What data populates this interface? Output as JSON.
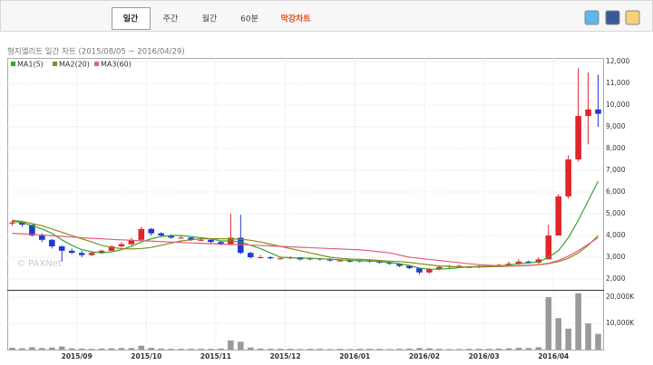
{
  "tabs": [
    "일간",
    "주간",
    "월간",
    "60분",
    "막강차트"
  ],
  "chart_data": [
    {
      "type": "candlestick",
      "title": "형지엘리트 일간 차트 (2015/08/05 ~ 2016/04/29)",
      "categories": [
        null,
        null,
        null,
        null,
        null,
        null,
        null,
        "2015/09",
        null,
        null,
        null,
        null,
        null,
        null,
        "2015/10",
        null,
        null,
        null,
        null,
        null,
        null,
        "2015/11",
        null,
        null,
        null,
        null,
        null,
        null,
        "2015/12",
        null,
        null,
        null,
        null,
        null,
        null,
        "2016/01",
        null,
        null,
        null,
        null,
        null,
        null,
        "2016/02",
        null,
        null,
        null,
        null,
        null,
        "2016/03",
        null,
        null,
        null,
        null,
        null,
        null,
        "2016/04",
        null,
        null,
        null,
        null
      ],
      "open": [
        4550,
        4600,
        4500,
        4000,
        3800,
        3500,
        3300,
        3200,
        3100,
        3200,
        3300,
        3500,
        3600,
        3800,
        4300,
        4100,
        4000,
        3900,
        3900,
        3800,
        3800,
        3700,
        3600,
        3900,
        3200,
        3000,
        3000,
        2950,
        2950,
        3000,
        2900,
        2950,
        2900,
        2850,
        2850,
        2800,
        2850,
        2800,
        2750,
        2700,
        2600,
        2500,
        2300,
        2450,
        2550,
        2600,
        2550,
        2550,
        2600,
        2600,
        2650,
        2700,
        2800,
        2750,
        2900,
        4000,
        5800,
        7500,
        9500,
        9800
      ],
      "high": [
        4700,
        4650,
        4500,
        4100,
        3850,
        3550,
        3400,
        3300,
        3250,
        3350,
        3550,
        3700,
        3900,
        4400,
        4350,
        4150,
        4050,
        4000,
        3950,
        3900,
        3850,
        3750,
        5000,
        4950,
        3250,
        3100,
        3050,
        3000,
        3050,
        3000,
        3000,
        2950,
        2950,
        2900,
        2900,
        2900,
        2850,
        2850,
        2800,
        2700,
        2650,
        2500,
        2500,
        2600,
        2650,
        2650,
        2600,
        2650,
        2650,
        2700,
        2800,
        2900,
        2850,
        3000,
        4500,
        5900,
        7700,
        11700,
        11500,
        11400
      ],
      "low": [
        4450,
        4400,
        3950,
        3700,
        3400,
        2800,
        3150,
        3000,
        3050,
        3150,
        3250,
        3450,
        3550,
        3750,
        4000,
        3950,
        3850,
        3850,
        3750,
        3750,
        3650,
        3550,
        3550,
        3150,
        2950,
        2950,
        2900,
        2900,
        2900,
        2850,
        2850,
        2850,
        2800,
        2800,
        2750,
        2750,
        2750,
        2700,
        2650,
        2550,
        2450,
        2200,
        2250,
        2400,
        2500,
        2500,
        2500,
        2500,
        2550,
        2550,
        2600,
        2650,
        2700,
        2700,
        2900,
        4000,
        5700,
        7400,
        8200,
        9000
      ],
      "close": [
        4600,
        4500,
        4000,
        3800,
        3500,
        3300,
        3200,
        3100,
        3200,
        3300,
        3500,
        3600,
        3800,
        4300,
        4100,
        4000,
        3900,
        3900,
        3800,
        3800,
        3700,
        3600,
        3900,
        3200,
        3000,
        3000,
        2950,
        2950,
        3000,
        2900,
        2950,
        2900,
        2850,
        2850,
        2800,
        2850,
        2800,
        2750,
        2700,
        2600,
        2500,
        2300,
        2450,
        2550,
        2600,
        2550,
        2550,
        2600,
        2600,
        2650,
        2700,
        2800,
        2750,
        2900,
        4000,
        5800,
        7500,
        9500,
        9800,
        9600
      ],
      "up_color": "#e0262a",
      "down_color": "#1f3bd0",
      "series": [
        {
          "name": "MA1(5)",
          "color": "#33a532",
          "values": [
            4650,
            4600,
            4450,
            4300,
            4100,
            3800,
            3550,
            3350,
            3250,
            3200,
            3250,
            3350,
            3500,
            3700,
            3850,
            3950,
            4000,
            4000,
            3950,
            3900,
            3850,
            3750,
            3750,
            3700,
            3550,
            3400,
            3200,
            3000,
            2980,
            2960,
            2950,
            2930,
            2910,
            2880,
            2860,
            2840,
            2820,
            2800,
            2760,
            2700,
            2620,
            2500,
            2450,
            2450,
            2480,
            2520,
            2560,
            2580,
            2590,
            2600,
            2640,
            2700,
            2740,
            2780,
            3000,
            3300,
            3900,
            4700,
            5600,
            6500
          ]
        },
        {
          "name": "MA2(20)",
          "color": "#8a8a1a",
          "values": [
            4700,
            4650,
            4550,
            4450,
            4300,
            4150,
            4000,
            3850,
            3700,
            3550,
            3450,
            3400,
            3380,
            3400,
            3450,
            3550,
            3650,
            3750,
            3800,
            3850,
            3850,
            3850,
            3850,
            3830,
            3780,
            3700,
            3600,
            3500,
            3400,
            3300,
            3200,
            3100,
            3000,
            2950,
            2920,
            2900,
            2880,
            2850,
            2820,
            2800,
            2760,
            2700,
            2650,
            2600,
            2580,
            2560,
            2550,
            2550,
            2560,
            2570,
            2590,
            2610,
            2630,
            2650,
            2700,
            2800,
            2950,
            3200,
            3550,
            4000
          ]
        },
        {
          "name": "MA3(60)",
          "color": "#e0607a",
          "values": [
            4100,
            4080,
            4050,
            4020,
            3990,
            3960,
            3930,
            3900,
            3870,
            3850,
            3820,
            3800,
            3780,
            3760,
            3740,
            3720,
            3700,
            3680,
            3660,
            3640,
            3620,
            3600,
            3590,
            3580,
            3560,
            3540,
            3520,
            3500,
            3480,
            3460,
            3440,
            3420,
            3400,
            3380,
            3360,
            3340,
            3300,
            3250,
            3200,
            3100,
            3000,
            2950,
            2900,
            2850,
            2800,
            2750,
            2700,
            2660,
            2630,
            2610,
            2600,
            2600,
            2620,
            2660,
            2720,
            2850,
            3050,
            3300,
            3600,
            3900
          ]
        }
      ],
      "ylim": [
        1500,
        12170
      ],
      "yticks": [
        {
          "value": 2000,
          "label": "2,000"
        },
        {
          "value": 3000,
          "label": "3,000"
        },
        {
          "value": 4000,
          "label": "4,000"
        },
        {
          "value": 5000,
          "label": "5,000"
        },
        {
          "value": 6000,
          "label": "6,000"
        },
        {
          "value": 7000,
          "label": "7,000"
        },
        {
          "value": 8000,
          "label": "8,000"
        },
        {
          "value": 9000,
          "label": "9,000"
        },
        {
          "value": 10000,
          "label": "10,000"
        },
        {
          "value": 11000,
          "label": "11,000"
        },
        {
          "value": 12000,
          "label": "12,000"
        }
      ],
      "grid": true,
      "watermark": "© PAXNet"
    },
    {
      "type": "bar",
      "color": "#9a9a9a",
      "values": [
        700,
        500,
        900,
        600,
        800,
        1200,
        500,
        400,
        300,
        400,
        500,
        600,
        600,
        1500,
        700,
        400,
        300,
        300,
        300,
        300,
        300,
        400,
        3500,
        3000,
        800,
        400,
        300,
        300,
        300,
        200,
        300,
        300,
        200,
        300,
        200,
        300,
        300,
        300,
        200,
        300,
        400,
        600,
        500,
        300,
        200,
        200,
        300,
        300,
        300,
        400,
        500,
        700,
        600,
        900,
        20000,
        12000,
        8000,
        21500,
        10000,
        6000
      ],
      "ylim": [
        0,
        22800
      ],
      "yticks": [
        {
          "value": 10000,
          "label": "10,000K"
        },
        {
          "value": 20000,
          "label": "20,000K"
        }
      ],
      "grid": true
    }
  ]
}
